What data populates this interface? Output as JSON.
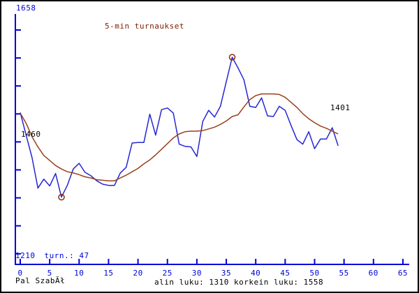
{
  "window": {
    "background": "#ffffff",
    "border_color": "#000000"
  },
  "footer": {
    "player": "Pal SzabĂł",
    "summary": "alin luku: 1310 korkein luku: 1558"
  },
  "chart_data": {
    "type": "line",
    "title": "5-min turnaukset",
    "x_axis": {
      "tick_labels": [
        0,
        5,
        10,
        15,
        20,
        25,
        30,
        35,
        40,
        45,
        50,
        55,
        60,
        65
      ]
    },
    "y_axis": {
      "top_label": "1658",
      "bottom_label": "1210"
    },
    "alin_luku": 1310,
    "korkein_luku": 1558,
    "tournaments": 47,
    "annotations": {
      "start_value": "1460",
      "final_value": "1401",
      "tournaments_text": "turn.: 47"
    },
    "colors": {
      "axis": "#0000d8",
      "rating_line": "#2626d2",
      "average_line": "#99411c",
      "marker": "#8b2e0e",
      "title": "#7a2004"
    },
    "series": [
      {
        "name": "rating",
        "color_key": "rating_line",
        "values": [
          1460,
          1420,
          1380,
          1326,
          1342,
          1330,
          1352,
          1310,
          1331,
          1360,
          1370,
          1354,
          1348,
          1339,
          1333,
          1331,
          1331,
          1353,
          1363,
          1406,
          1407,
          1407,
          1457,
          1420,
          1465,
          1468,
          1459,
          1404,
          1400,
          1399,
          1382,
          1444,
          1464,
          1452,
          1471,
          1515,
          1558,
          1539,
          1518,
          1471,
          1469,
          1486,
          1454,
          1453,
          1471,
          1464,
          1437,
          1412,
          1404,
          1426,
          1396,
          1413,
          1413,
          1433,
          1401
        ]
      },
      {
        "name": "moving_average",
        "color_key": "average_line",
        "values": [
          1459,
          1441,
          1417,
          1399,
          1384,
          1375,
          1366,
          1360,
          1355,
          1353,
          1350,
          1346,
          1344,
          1341,
          1340,
          1339,
          1339,
          1344,
          1349,
          1355,
          1361,
          1369,
          1376,
          1385,
          1395,
          1405,
          1415,
          1422,
          1426,
          1427,
          1427,
          1428,
          1431,
          1434,
          1439,
          1445,
          1453,
          1456,
          1470,
          1483,
          1490,
          1493,
          1493,
          1493,
          1492,
          1487,
          1478,
          1469,
          1458,
          1449,
          1442,
          1436,
          1432,
          1427,
          1422
        ]
      }
    ],
    "markers": [
      {
        "series": "rating",
        "index": 7,
        "value": 1310
      },
      {
        "series": "rating",
        "index": 36,
        "value": 1558
      }
    ]
  }
}
